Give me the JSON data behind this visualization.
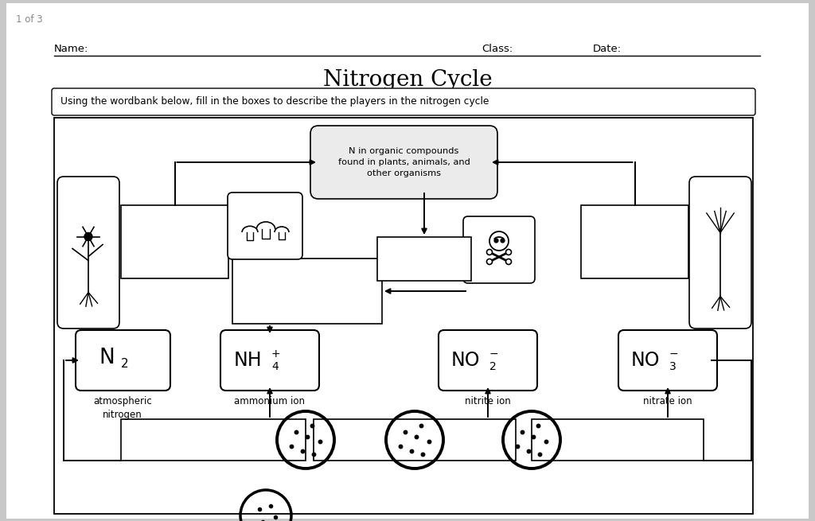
{
  "page_label": "1 of 3",
  "title": "Nitrogen Cycle",
  "name_label": "Name:",
  "class_label": "Class:",
  "date_label": "Date:",
  "instruction": "Using the wordbank below, fill in the boxes to describe the players in the nitrogen cycle",
  "organic_text": "N in organic compounds\nfound in plants, animals, and\nother organisms",
  "n2_caption": "atmospheric\nnitrogen",
  "nh4_caption": "ammonium ion",
  "no2_caption": "nitrite ion",
  "no3_caption": "nitrate ion",
  "bg_color": "#c8c8c8",
  "paper_color": "#ffffff",
  "box_edge": "#000000",
  "text_color": "#000000",
  "gray_text": "#888888",
  "organic_bg": "#ebebeb"
}
